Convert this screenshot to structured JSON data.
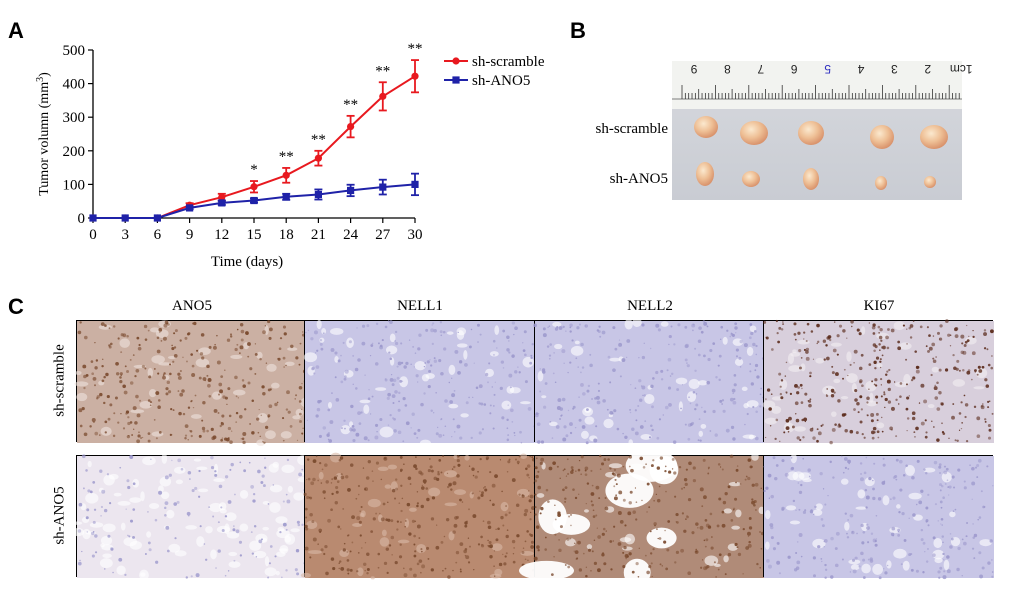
{
  "panels": {
    "a": "A",
    "b": "B",
    "c": "C"
  },
  "chart_data": {
    "type": "line",
    "xlabel": "Time (days)",
    "ylabel_main": "Tumor volumn (mm",
    "ylabel_sup": "3",
    "ylabel_end": ")",
    "xlim": [
      0,
      30
    ],
    "ylim": [
      0,
      500
    ],
    "x": [
      0,
      3,
      6,
      9,
      12,
      15,
      18,
      21,
      24,
      27,
      30
    ],
    "xticks": [
      "0",
      "3",
      "6",
      "9",
      "12",
      "15",
      "18",
      "21",
      "24",
      "27",
      "30"
    ],
    "yticks": [
      "0",
      "100",
      "200",
      "300",
      "400",
      "500"
    ],
    "legend_position": "top-right",
    "series": [
      {
        "name": "sh-scramble",
        "color": "#e8191f",
        "marker": "circle",
        "values": [
          0,
          0,
          0,
          38,
          62,
          93,
          127,
          178,
          272,
          362,
          422
        ],
        "errors": [
          0,
          0,
          0,
          6,
          10,
          17,
          22,
          22,
          32,
          42,
          48
        ]
      },
      {
        "name": "sh-ANO5",
        "color": "#1f22a8",
        "marker": "square",
        "values": [
          0,
          0,
          0,
          30,
          45,
          52,
          63,
          70,
          82,
          92,
          100
        ],
        "errors": [
          0,
          0,
          0,
          4,
          6,
          6,
          9,
          15,
          17,
          22,
          32
        ]
      }
    ],
    "annotations": [
      {
        "x": 15,
        "text": "*"
      },
      {
        "x": 18,
        "text": "**"
      },
      {
        "x": 21,
        "text": "**"
      },
      {
        "x": 24,
        "text": "**"
      },
      {
        "x": 27,
        "text": "**"
      },
      {
        "x": 30,
        "text": "**"
      }
    ]
  },
  "photo": {
    "ruler_numbers": [
      "9",
      "8",
      "7",
      "6",
      "5",
      "4",
      "3",
      "2",
      "1cm"
    ],
    "row_labels": [
      "sh-scramble",
      "sh-ANO5"
    ]
  },
  "ihc": {
    "columns": [
      "ANO5",
      "NELL1",
      "NELL2",
      "KI67"
    ],
    "rows": [
      "sh-scramble",
      "sh-ANO5"
    ],
    "colors": {
      "blue": "#c8c6e6",
      "blue_dark": "#9c98cc",
      "brown": "#b98a70",
      "brown_dark": "#7a4a2e",
      "pale": "#ece6ef"
    }
  }
}
